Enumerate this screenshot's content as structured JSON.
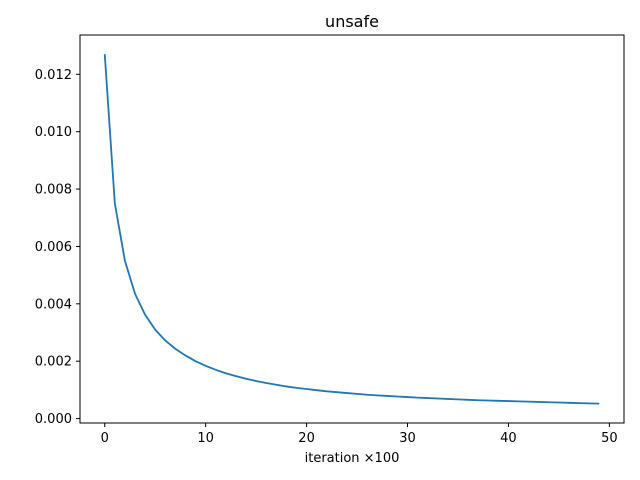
{
  "chart_data": {
    "type": "line",
    "title": "unsafe",
    "xlabel": "iteration ×100",
    "ylabel": "",
    "xlim": [
      -2.45,
      51.45
    ],
    "ylim": [
      -0.000154,
      0.01337
    ],
    "xticks": [
      0,
      10,
      20,
      30,
      40,
      50
    ],
    "xtick_labels": [
      "0",
      "10",
      "20",
      "30",
      "40",
      "50"
    ],
    "yticks": [
      0.0,
      0.002,
      0.004,
      0.006,
      0.008,
      0.01,
      0.012
    ],
    "ytick_labels": [
      "0.000",
      "0.002",
      "0.004",
      "0.006",
      "0.008",
      "0.010",
      "0.012"
    ],
    "grid": false,
    "series": [
      {
        "color": "#1f77b4",
        "x": [
          0,
          1,
          2,
          3,
          4,
          5,
          6,
          7,
          8,
          9,
          10,
          11,
          12,
          13,
          14,
          15,
          16,
          17,
          18,
          19,
          20,
          21,
          22,
          23,
          24,
          25,
          26,
          27,
          28,
          29,
          30,
          31,
          32,
          33,
          34,
          35,
          36,
          37,
          38,
          39,
          40,
          41,
          42,
          43,
          44,
          45,
          46,
          47,
          48,
          49
        ],
        "y": [
          0.0127,
          0.0075,
          0.0055,
          0.00435,
          0.00362,
          0.0031,
          0.00272,
          0.00243,
          0.0022,
          0.002,
          0.00184,
          0.0017,
          0.00158,
          0.00148,
          0.00139,
          0.00131,
          0.00124,
          0.00118,
          0.00112,
          0.00107,
          0.00103,
          0.00099,
          0.00095,
          0.00092,
          0.00089,
          0.00086,
          0.00083,
          0.00081,
          0.00079,
          0.00077,
          0.00075,
          0.00073,
          0.000715,
          0.0007,
          0.000685,
          0.00067,
          0.000655,
          0.00064,
          0.00063,
          0.00062,
          0.00061,
          0.0006,
          0.00059,
          0.00058,
          0.00057,
          0.00056,
          0.00055,
          0.00054,
          0.00053,
          0.00052
        ]
      }
    ]
  }
}
